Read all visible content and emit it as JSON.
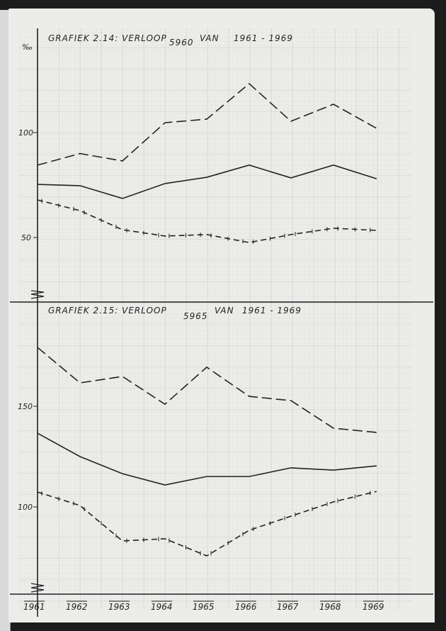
{
  "chart_data": [
    {
      "type": "line",
      "title": "GRAFIEK 2.14: VERLOOP 5960 VAN 1961-1969",
      "unit_label": "%00",
      "xlabel": "",
      "ylabel": "%00",
      "categories": [
        "1961",
        "1962",
        "1963",
        "1964",
        "1965",
        "1966",
        "1967",
        "1968",
        "1969"
      ],
      "yticks": [
        50,
        100
      ],
      "ylim": [
        25,
        145
      ],
      "grid": true,
      "series": [
        {
          "name": "long-dashed",
          "style": "dashed",
          "values": [
            84.5,
            90,
            86.5,
            104.7,
            106.4,
            123.3,
            105.4,
            113.5,
            102
          ]
        },
        {
          "name": "solid",
          "style": "solid",
          "values": [
            75.3,
            74.7,
            68.6,
            75.7,
            78.7,
            84.5,
            78.4,
            84.5,
            78
          ]
        },
        {
          "name": "dashed-crossed",
          "style": "dashed-crossed",
          "values": [
            67.9,
            62.8,
            53.7,
            50.7,
            51.4,
            47.6,
            51.4,
            54.4,
            53.4
          ]
        }
      ]
    },
    {
      "type": "line",
      "title": "GRAFIEK 2.15: VERLOOP 5965 VAN 1961-1969",
      "xlabel": "",
      "ylabel": "",
      "categories": [
        "1961",
        "1962",
        "1963",
        "1964",
        "1965",
        "1966",
        "1967",
        "1968",
        "1969"
      ],
      "yticks": [
        100,
        150
      ],
      "ylim": [
        60,
        190
      ],
      "grid": true,
      "series": [
        {
          "name": "long-dashed",
          "style": "dashed",
          "values": [
            179.2,
            161.6,
            164.8,
            151,
            169.4,
            154.9,
            152.8,
            139.1,
            137
          ]
        },
        {
          "name": "solid",
          "style": "solid",
          "values": [
            136.6,
            125,
            116.5,
            110.9,
            115.1,
            115.1,
            119.4,
            118.3,
            120.4
          ]
        },
        {
          "name": "dashed-crossed",
          "style": "dashed-crossed",
          "values": [
            107.4,
            100.7,
            83.1,
            84.2,
            75.7,
            88.4,
            95.4,
            102.5,
            107.7
          ]
        }
      ]
    }
  ],
  "chart1": {
    "title_prefix": "GRAFIEK 2.14:  VERLOOP",
    "title_sub": "5960",
    "title_van": "VAN",
    "title_range": "1961 - 1969",
    "unit": "‰",
    "tick_100": "100",
    "tick_50": "50"
  },
  "chart2": {
    "title_prefix": "GRAFIEK 2.15:  VERLOOP",
    "title_sub": "5965",
    "title_van": "VAN",
    "title_range": "1961 - 1969",
    "tick_150": "150",
    "tick_100": "100"
  },
  "years": [
    "1961",
    "1962",
    "1963",
    "1964",
    "1965",
    "1966",
    "1967",
    "1968",
    "1969"
  ],
  "colors": {
    "ink": "#222222",
    "paper": "#ececea",
    "grid_minor": "#d6d6d4",
    "grid_major": "#c2c2c0",
    "background": "#1c1c1c"
  }
}
